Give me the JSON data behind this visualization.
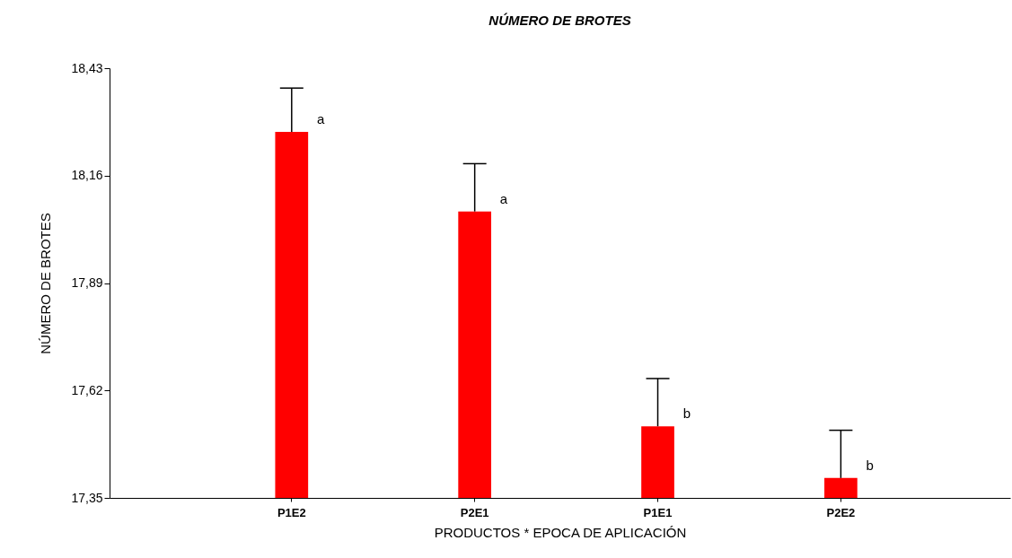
{
  "chart_data": {
    "type": "bar",
    "title": "NÚMERO DE BROTES",
    "xlabel": "PRODUCTOS   *   EPOCA DE APLICACIÓN",
    "ylabel": "NÚMERO DE BROTES",
    "categories": [
      "P1E2",
      "P2E1",
      "P1E1",
      "P2E2"
    ],
    "values": [
      18.27,
      18.07,
      17.53,
      17.4
    ],
    "color": "#ff0000",
    "errors": [
      [
        18.27,
        18.38
      ],
      [
        18.07,
        18.19
      ],
      [
        17.53,
        17.65
      ],
      [
        17.4,
        17.52
      ]
    ],
    "ylim": [
      17.35,
      18.43
    ],
    "yticks": [
      {
        "value": 17.35,
        "label": "17,35"
      },
      {
        "value": 17.62,
        "label": "17,62"
      },
      {
        "value": 17.89,
        "label": "17,89"
      },
      {
        "value": 18.16,
        "label": "18,16"
      },
      {
        "value": 18.43,
        "label": "18,43"
      }
    ],
    "annotations": [
      {
        "text": "a",
        "x": "P1E2",
        "y": 18.27
      },
      {
        "text": "a",
        "x": "P2E1",
        "y": 18.07
      },
      {
        "text": "b",
        "x": "P1E1",
        "y": 17.53
      },
      {
        "text": "b",
        "x": "P2E2",
        "y": 17.4
      }
    ],
    "grid": false
  }
}
